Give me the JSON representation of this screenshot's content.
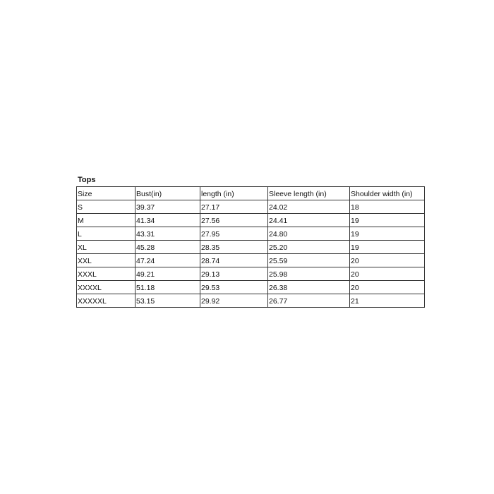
{
  "title": "Tops",
  "headers": [
    "Size",
    "Bust(in)",
    "length (in)",
    "Sleeve length (in)",
    "Shoulder width (in)"
  ],
  "rows": [
    [
      "S",
      "39.37",
      "27.17",
      "24.02",
      "18"
    ],
    [
      "M",
      "41.34",
      "27.56",
      "24.41",
      "19"
    ],
    [
      "L",
      "43.31",
      "27.95",
      "24.80",
      "19"
    ],
    [
      "XL",
      "45.28",
      "28.35",
      "25.20",
      "19"
    ],
    [
      "XXL",
      "47.24",
      "28.74",
      "25.59",
      "20"
    ],
    [
      "XXXL",
      "49.21",
      "29.13",
      "25.98",
      "20"
    ],
    [
      "XXXXL",
      "51.18",
      "29.53",
      "26.38",
      "20"
    ],
    [
      "XXXXXL",
      "53.15",
      "29.92",
      "26.77",
      "21"
    ]
  ]
}
